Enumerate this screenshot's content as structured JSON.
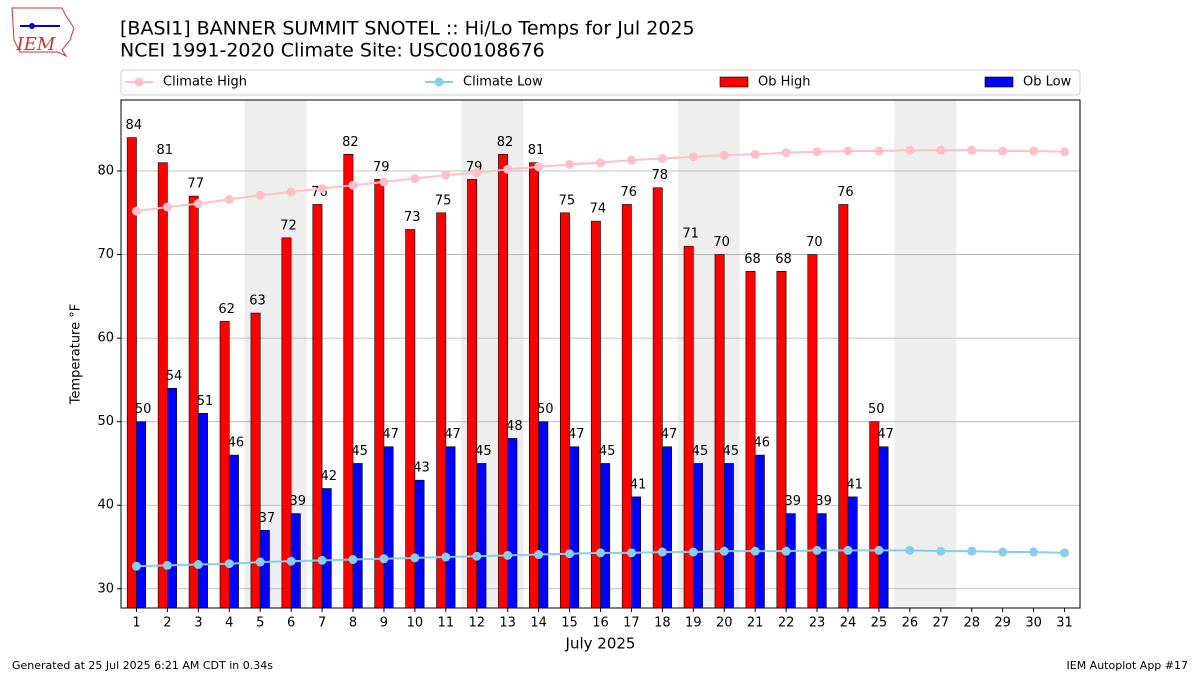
{
  "logo": "IEM",
  "chart_data": {
    "type": "bar",
    "title": "[BASI1] BANNER SUMMIT SNOTEL :: Hi/Lo Temps for Jul 2025",
    "subtitle": "NCEI 1991-2020 Climate Site: USC00108676",
    "xlabel": "July 2025",
    "ylabel": "Temperature °F",
    "x": [
      1,
      2,
      3,
      4,
      5,
      6,
      7,
      8,
      9,
      10,
      11,
      12,
      13,
      14,
      15,
      16,
      17,
      18,
      19,
      20,
      21,
      22,
      23,
      24,
      25,
      26,
      27,
      28,
      29,
      30,
      31
    ],
    "xlim": [
      0.5,
      31.5
    ],
    "xticks": [
      1,
      2,
      3,
      4,
      5,
      6,
      7,
      8,
      9,
      10,
      11,
      12,
      13,
      14,
      15,
      16,
      17,
      18,
      19,
      20,
      21,
      22,
      23,
      24,
      25,
      26,
      27,
      28,
      29,
      30,
      31
    ],
    "ylim": [
      27.7,
      88.5
    ],
    "yticks": [
      30,
      40,
      50,
      60,
      70,
      80
    ],
    "grid": true,
    "shaded": [
      [
        5,
        6
      ],
      [
        12,
        13
      ],
      [
        19,
        20
      ],
      [
        26,
        27
      ]
    ],
    "shade_color": "#eeeeee",
    "legend": "upper center",
    "series": [
      {
        "name": "Climate High",
        "kind": "line",
        "color": "#ffc0cb",
        "values": [
          75.2,
          75.7,
          76.1,
          76.6,
          77.1,
          77.5,
          77.9,
          78.3,
          78.7,
          79.1,
          79.5,
          79.8,
          80.2,
          80.5,
          80.8,
          81.0,
          81.3,
          81.5,
          81.7,
          81.9,
          82.0,
          82.2,
          82.3,
          82.4,
          82.4,
          82.5,
          82.5,
          82.5,
          82.4,
          82.4,
          82.3
        ]
      },
      {
        "name": "Climate Low",
        "kind": "line",
        "color": "#87ceeb",
        "values": [
          32.7,
          32.8,
          32.9,
          33.0,
          33.2,
          33.3,
          33.4,
          33.5,
          33.6,
          33.7,
          33.8,
          33.9,
          34.0,
          34.1,
          34.2,
          34.3,
          34.3,
          34.4,
          34.4,
          34.5,
          34.5,
          34.5,
          34.6,
          34.6,
          34.6,
          34.6,
          34.5,
          34.5,
          34.4,
          34.4,
          34.3
        ]
      },
      {
        "name": "Ob High",
        "kind": "bar",
        "color": "#ff0000",
        "values": [
          84,
          81,
          77,
          62,
          63,
          72,
          76,
          82,
          79,
          73,
          75,
          79,
          82,
          81,
          75,
          74,
          76,
          78,
          71,
          70,
          68,
          68,
          70,
          76,
          50,
          null,
          null,
          null,
          null,
          null,
          null
        ]
      },
      {
        "name": "Ob Low",
        "kind": "bar",
        "color": "#0000ff",
        "values": [
          50,
          54,
          51,
          46,
          37,
          39,
          42,
          45,
          47,
          43,
          47,
          45,
          48,
          50,
          47,
          45,
          41,
          47,
          45,
          45,
          46,
          39,
          39,
          41,
          47,
          null,
          null,
          null,
          null,
          null,
          null
        ]
      }
    ]
  },
  "footer": {
    "left": "Generated at 25 Jul 2025 6:21 AM CDT in 0.34s",
    "right": "IEM Autoplot App #17"
  }
}
